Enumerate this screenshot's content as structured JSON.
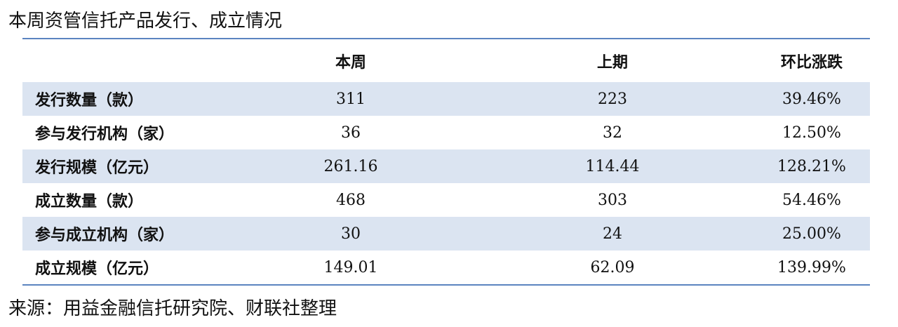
{
  "title": "本周资管信托产品发行、成立情况",
  "table": {
    "columns": [
      "本周",
      "上期",
      "环比涨跌"
    ],
    "rows": [
      [
        "发行数量（款）",
        "311",
        "223",
        "39.46%"
      ],
      [
        "参与发行机构（家）",
        "36",
        "32",
        "12.50%"
      ],
      [
        "发行规模（亿元）",
        "261.16",
        "114.44",
        "128.21%"
      ],
      [
        "成立数量（款）",
        "468",
        "303",
        "54.46%"
      ],
      [
        "参与成立机构（家）",
        "30",
        "24",
        "25.00%"
      ],
      [
        "成立规模（亿元）",
        "149.01",
        "62.09",
        "139.99%"
      ]
    ]
  },
  "source": "来源：用益金融信托研究院、财联社整理"
}
